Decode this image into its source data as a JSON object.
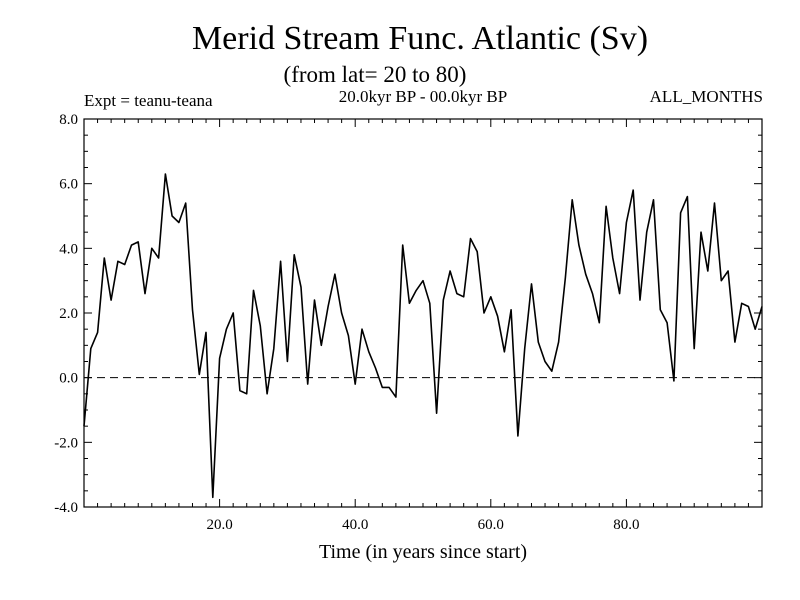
{
  "chart_data": {
    "type": "line",
    "title": "Merid Stream Func. Atlantic (Sv)",
    "subtitle": "(from lat= 20 to 80)",
    "experiment": "Expt = teanu-teana",
    "period": "20.0kyr BP - 00.0kyr BP",
    "months": "ALL_MONTHS",
    "xlabel": "Time (in years since start)",
    "ylabel": "",
    "xlim": [
      0,
      100
    ],
    "ylim": [
      -4.0,
      8.0
    ],
    "xticks": [
      20,
      40,
      60,
      80
    ],
    "xtick_labels": [
      "20.0",
      "40.0",
      "60.0",
      "80.0"
    ],
    "yticks": [
      -4,
      -2,
      0,
      2,
      4,
      6,
      8
    ],
    "ytick_labels": [
      "-4.0",
      "-2.0",
      "0.0",
      "2.0",
      "4.0",
      "6.0",
      "8.0"
    ],
    "reference_line": {
      "y": 0,
      "style": "dashed"
    },
    "series": [
      {
        "name": "Merid Stream Func.",
        "x": [
          0,
          1,
          2,
          3,
          4,
          5,
          6,
          7,
          8,
          9,
          10,
          11,
          12,
          13,
          14,
          15,
          16,
          17,
          18,
          19,
          20,
          21,
          22,
          23,
          24,
          25,
          26,
          27,
          28,
          29,
          30,
          31,
          32,
          33,
          34,
          35,
          36,
          37,
          38,
          39,
          40,
          41,
          42,
          43,
          44,
          45,
          46,
          47,
          48,
          49,
          50,
          51,
          52,
          53,
          54,
          55,
          56,
          57,
          58,
          59,
          60,
          61,
          62,
          63,
          64,
          65,
          66,
          67,
          68,
          69,
          70,
          71,
          72,
          73,
          74,
          75,
          76,
          77,
          78,
          79,
          80,
          81,
          82,
          83,
          84,
          85,
          86,
          87,
          88,
          89,
          90,
          91,
          92,
          93,
          94,
          95,
          96,
          97,
          98,
          99,
          100
        ],
        "values": [
          -1.5,
          0.9,
          1.4,
          3.7,
          2.4,
          3.6,
          3.5,
          4.1,
          4.2,
          2.6,
          4.0,
          3.7,
          6.3,
          5.0,
          4.8,
          5.4,
          2.1,
          0.1,
          1.4,
          -3.7,
          0.6,
          1.5,
          2.0,
          -0.4,
          -0.5,
          2.7,
          1.6,
          -0.5,
          0.9,
          3.6,
          0.5,
          3.8,
          2.8,
          -0.2,
          2.4,
          1.0,
          2.2,
          3.2,
          2.0,
          1.3,
          -0.2,
          1.5,
          0.8,
          0.3,
          -0.3,
          -0.3,
          -0.6,
          4.1,
          2.3,
          2.7,
          3.0,
          2.3,
          -1.1,
          2.4,
          3.3,
          2.6,
          2.5,
          4.3,
          3.9,
          2.0,
          2.5,
          1.9,
          0.8,
          2.1,
          -1.8,
          0.9,
          2.9,
          1.1,
          0.5,
          0.2,
          1.1,
          3.1,
          5.5,
          4.1,
          3.2,
          2.6,
          1.7,
          5.3,
          3.7,
          2.6,
          4.8,
          5.8,
          2.4,
          4.5,
          5.5,
          2.1,
          1.7,
          -0.1,
          5.1,
          5.6,
          0.9,
          4.5,
          3.3,
          5.4,
          3.0,
          3.3,
          1.1,
          2.3,
          2.2,
          1.5,
          2.2
        ]
      }
    ]
  }
}
